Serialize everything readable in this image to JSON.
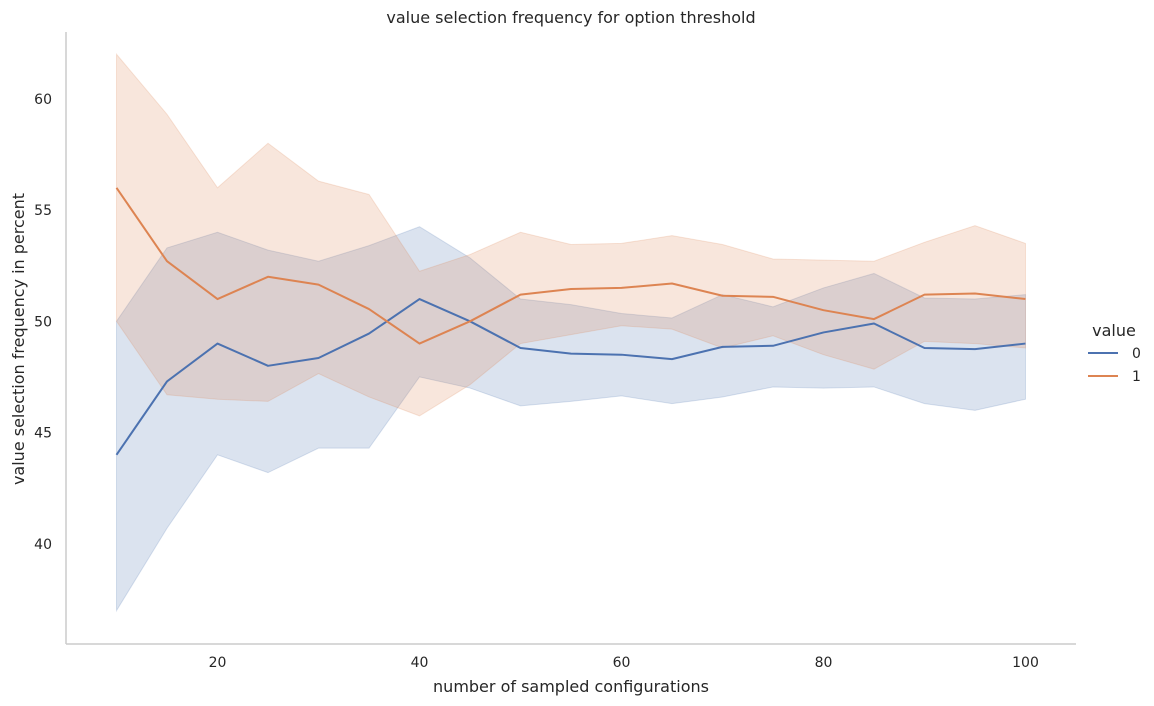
{
  "chart_data": {
    "type": "line",
    "title": "value selection frequency for option threshold",
    "xlabel": "number of sampled configurations",
    "ylabel": "value selection frequency in percent",
    "xlim": [
      5,
      105
    ],
    "ylim": [
      35.5,
      63.0
    ],
    "x_ticks": [
      20,
      40,
      60,
      80,
      100
    ],
    "y_ticks": [
      40,
      45,
      50,
      55,
      60
    ],
    "grid": false,
    "legend": {
      "title": "value",
      "placement": "right"
    },
    "x": [
      10,
      15,
      20,
      25,
      30,
      35,
      40,
      45,
      50,
      55,
      60,
      65,
      70,
      75,
      80,
      85,
      90,
      95,
      100
    ],
    "series": [
      {
        "name": "0",
        "color": "#4c72b0",
        "values": [
          44.0,
          47.3,
          49.0,
          48.0,
          48.35,
          49.45,
          51.0,
          50.0,
          48.8,
          48.55,
          48.5,
          48.3,
          48.85,
          48.9,
          49.5,
          49.9,
          48.8,
          48.75,
          49.0
        ],
        "ci_low": [
          37.0,
          40.7,
          44.0,
          43.2,
          44.3,
          44.3,
          47.5,
          47.0,
          46.2,
          46.4,
          46.65,
          46.3,
          46.6,
          47.05,
          47.0,
          47.05,
          46.3,
          46.0,
          46.5
        ],
        "ci_high": [
          50.0,
          53.3,
          54.0,
          53.2,
          52.7,
          53.4,
          54.25,
          52.85,
          51.0,
          50.75,
          50.35,
          50.15,
          51.2,
          50.65,
          51.5,
          52.15,
          51.05,
          51.0,
          51.2
        ]
      },
      {
        "name": "1",
        "color": "#dd8452",
        "values": [
          56.0,
          52.7,
          51.0,
          52.0,
          51.65,
          50.55,
          49.0,
          50.0,
          51.2,
          51.45,
          51.5,
          51.7,
          51.15,
          51.1,
          50.5,
          50.1,
          51.2,
          51.25,
          51.0
        ],
        "ci_low": [
          50.0,
          46.7,
          46.5,
          46.4,
          47.65,
          46.6,
          45.75,
          47.15,
          49.0,
          49.4,
          49.8,
          49.65,
          48.8,
          49.35,
          48.5,
          47.85,
          49.1,
          49.0,
          48.8
        ],
        "ci_high": [
          62.0,
          59.3,
          56.0,
          58.0,
          56.3,
          55.7,
          52.25,
          53.0,
          54.0,
          53.45,
          53.5,
          53.85,
          53.45,
          52.8,
          52.75,
          52.7,
          53.55,
          54.3,
          53.5
        ]
      }
    ]
  }
}
